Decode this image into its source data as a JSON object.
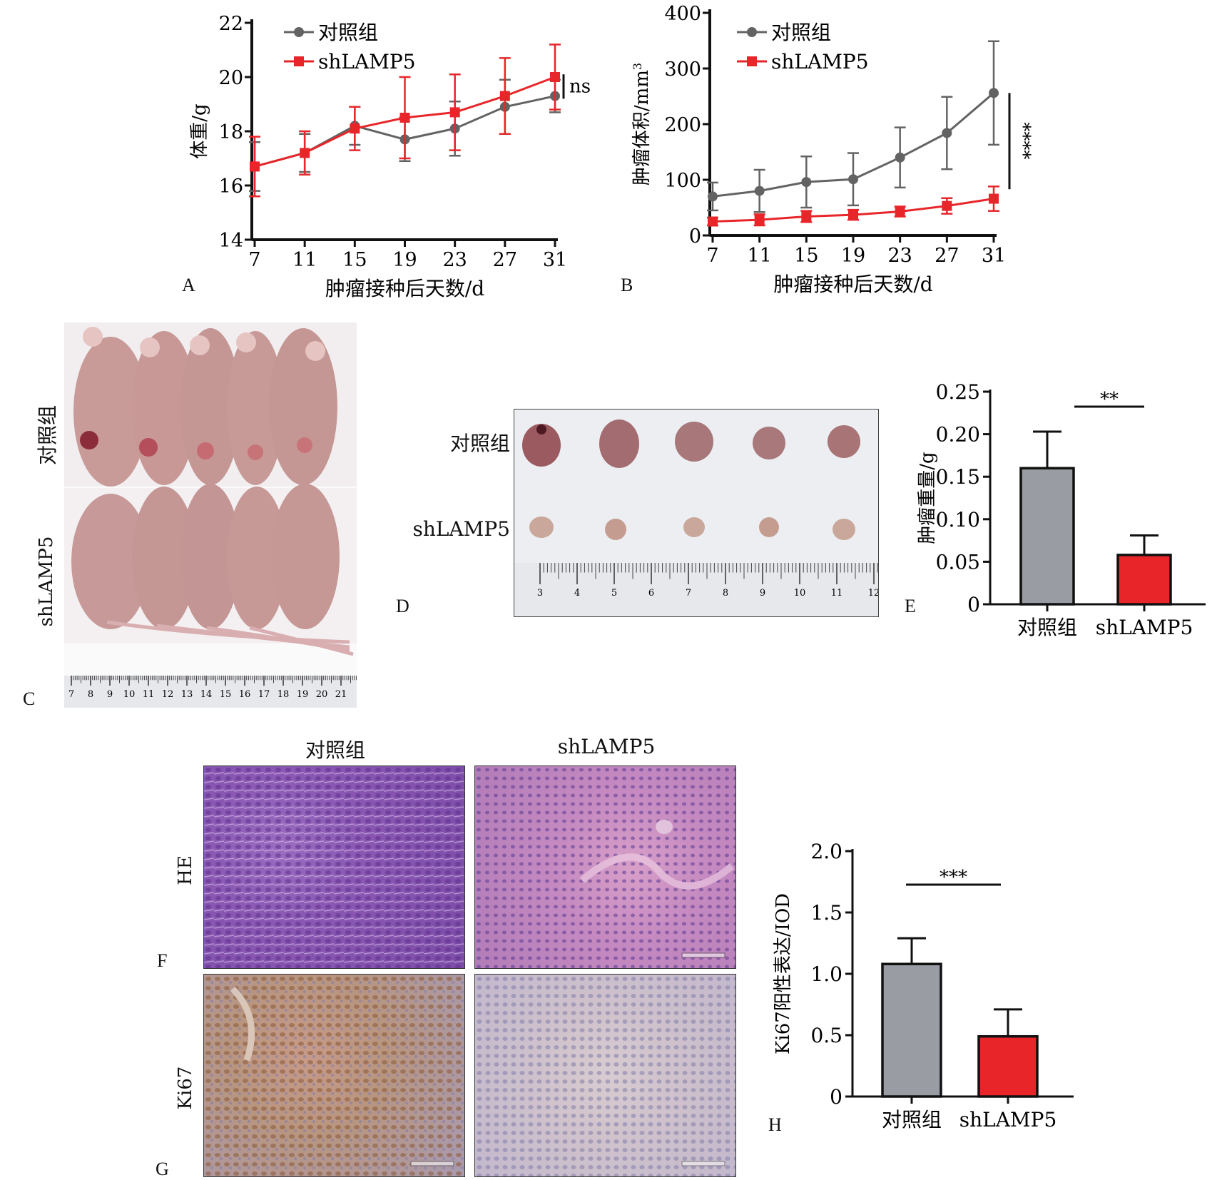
{
  "panel_letters": {
    "A": "A",
    "B": "B",
    "C": "C",
    "D": "D",
    "E": "E",
    "F": "F",
    "G": "G",
    "H": "H"
  },
  "colors": {
    "control": "#636363",
    "shlamp5": "#e8262a",
    "bar_control": "#9a9ca3",
    "bar_shlamp5": "#e8262a"
  },
  "chart_data": [
    {
      "id": "A",
      "type": "line",
      "xlabel": "肿瘤接种后天数/d",
      "ylabel": "体重/g",
      "x": [
        7,
        11,
        15,
        19,
        23,
        27,
        31
      ],
      "xticks": [
        "7",
        "11",
        "15",
        "19",
        "23",
        "27",
        "31"
      ],
      "yticks": [
        "14",
        "16",
        "18",
        "20",
        "22"
      ],
      "ylim": [
        14,
        22
      ],
      "legend_position": "top-left",
      "series": [
        {
          "name": "对照组",
          "values": [
            16.7,
            17.2,
            18.2,
            17.7,
            18.1,
            18.9,
            19.3
          ],
          "errors": [
            0.9,
            0.7,
            0.7,
            0.8,
            1.0,
            1.0,
            0.6
          ],
          "marker": "circle"
        },
        {
          "name": "shLAMP5",
          "values": [
            16.7,
            17.2,
            18.1,
            18.5,
            18.7,
            19.3,
            20.0
          ],
          "errors": [
            1.1,
            0.8,
            0.8,
            1.5,
            1.4,
            1.4,
            1.2
          ],
          "marker": "square"
        }
      ],
      "significance": "ns"
    },
    {
      "id": "B",
      "type": "line",
      "xlabel": "肿瘤接种后天数/d",
      "ylabel": "肿瘤体积/mm",
      "ylabel_sup": "3",
      "x": [
        7,
        11,
        15,
        19,
        23,
        27,
        31
      ],
      "xticks": [
        "7",
        "11",
        "15",
        "19",
        "23",
        "27",
        "31"
      ],
      "yticks": [
        "0",
        "100",
        "200",
        "300",
        "400"
      ],
      "ylim": [
        0,
        400
      ],
      "legend_position": "top-left",
      "series": [
        {
          "name": "对照组",
          "values": [
            70,
            80,
            96,
            101,
            140,
            184,
            256
          ],
          "errors": [
            25,
            38,
            46,
            47,
            54,
            65,
            93
          ],
          "marker": "circle"
        },
        {
          "name": "shLAMP5",
          "values": [
            25,
            28,
            34,
            37,
            43,
            53,
            66
          ],
          "errors": [
            7,
            10,
            10,
            9,
            9,
            14,
            22
          ],
          "marker": "square"
        }
      ],
      "significance": "****"
    },
    {
      "id": "E",
      "type": "bar",
      "categories": [
        "对照组",
        "shLAMP5"
      ],
      "values": [
        0.16,
        0.058
      ],
      "errors": [
        0.043,
        0.023
      ],
      "ylabel": "肿瘤重量/g",
      "yticks": [
        "0",
        "0.05",
        "0.10",
        "0.15",
        "0.20",
        "0.25"
      ],
      "ylim": [
        0,
        0.25
      ],
      "significance": "**"
    },
    {
      "id": "H",
      "type": "bar",
      "categories": [
        "对照组",
        "shLAMP5"
      ],
      "values": [
        1.08,
        0.49
      ],
      "errors": [
        0.21,
        0.22
      ],
      "ylabel": "Ki67阳性表达/IOD",
      "yticks": [
        "0",
        "0.5",
        "1.0",
        "1.5",
        "2.0"
      ],
      "ylim": [
        0,
        2.0
      ],
      "significance": "***"
    }
  ],
  "panel_C": {
    "row_labels": [
      "对照组",
      "shLAMP5"
    ],
    "ruler_ticks": [
      "7",
      "8",
      "9",
      "10",
      "11",
      "12",
      "13",
      "14",
      "15",
      "16",
      "17",
      "18",
      "19",
      "20",
      "21"
    ]
  },
  "panel_D": {
    "row_labels": [
      "对照组",
      "shLAMP5"
    ],
    "ruler_ticks": [
      "3",
      "4",
      "5",
      "6",
      "7",
      "8",
      "9",
      "10",
      "11",
      "12"
    ]
  },
  "panel_FG": {
    "col_labels": [
      "对照组",
      "shLAMP5"
    ],
    "row_labels": [
      "HE",
      "Ki67"
    ]
  }
}
